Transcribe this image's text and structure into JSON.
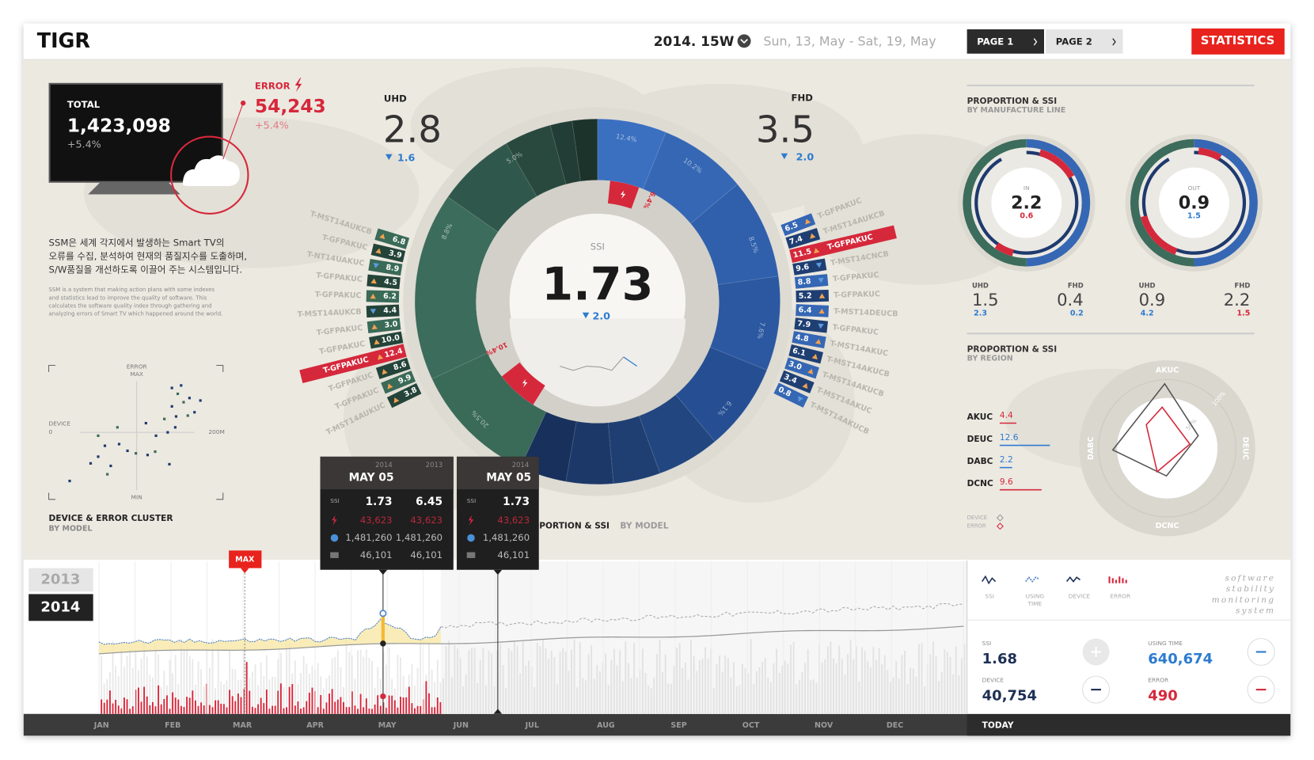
{
  "header": {
    "logo": "TIGR",
    "week": "2014. 15W",
    "range": "Sun, 13, May - Sat, 19, May",
    "pages": [
      "PAGE 1",
      "PAGE 2"
    ],
    "button": "STATISTICS"
  },
  "summary": {
    "total_label": "TOTAL",
    "total": "1,423,098",
    "total_change": "+5.4%",
    "error_label": "ERROR",
    "error": "54,243",
    "error_change": "+5.4%"
  },
  "description": {
    "korean": [
      "SSM은 세계 각지에서 발생하는 Smart TV의",
      "오류를 수집, 분석하여 현재의 품질지수를 도출하며,",
      "S/W품질을 개선하도록 이끌어 주는 시스템입니다."
    ],
    "english": [
      "SSM is a system that making action plans with some indexes",
      "and statistics lead to improve the quality of software. This",
      "calculates the software quality index through gathering and",
      "analyzing errors of Smart TV which happened around the world."
    ]
  },
  "cluster": {
    "title": "DEVICE & ERROR CLUSTER",
    "subtitle": "BY MODEL",
    "y_top": [
      "ERROR",
      "MAX"
    ],
    "y_bottom": "MIN",
    "x_start": [
      "DEVICE",
      "0"
    ],
    "x_end": "200M"
  },
  "model": {
    "title": "PROPORTION & SSI",
    "subtitle": "BY MODEL",
    "uhd": {
      "label": "UHD",
      "value": "2.8",
      "change": "1.6"
    },
    "fhd": {
      "label": "FHD",
      "value": "3.5",
      "change": "2.0"
    },
    "ssi": {
      "label": "SSI",
      "value": "1.73",
      "change": "2.0"
    },
    "segments": [
      "12.4%",
      "10.2%",
      "8.5%",
      "7.6%",
      "6.1%",
      "20.5%",
      "8.8%",
      "5.0%"
    ],
    "errors": [
      "6.4%",
      "10.4%"
    ],
    "left_models": [
      {
        "name": "T-MST14AUKCB",
        "value": "6.8",
        "trend": "up"
      },
      {
        "name": "T-GFPAKUC",
        "value": "3.9",
        "trend": "up"
      },
      {
        "name": "T-NT14UAKUC",
        "value": "8.9",
        "trend": "down"
      },
      {
        "name": "T-GFPAKUC",
        "value": "4.5",
        "trend": "up"
      },
      {
        "name": "T-GFPAKUC",
        "value": "6.2",
        "trend": "up"
      },
      {
        "name": "T-MST14AUKCB",
        "value": "4.4",
        "trend": "down"
      },
      {
        "name": "T-GFPAKUC",
        "value": "3.0",
        "trend": "up"
      },
      {
        "name": "T-GFPAKUC",
        "value": "10.0",
        "trend": "up"
      },
      {
        "name": "T-GFPAKUC",
        "value": "12.4",
        "trend": "up",
        "selected": true
      },
      {
        "name": "T-GFPAKUC",
        "value": "8.6",
        "trend": "up"
      },
      {
        "name": "T-GFPAKUC",
        "value": "9.9",
        "trend": "up"
      },
      {
        "name": "T-MST14AUKUC",
        "value": "3.8",
        "trend": "up"
      }
    ],
    "right_models": [
      {
        "name": "T-GFPAKUC",
        "value": "6.5",
        "trend": "up"
      },
      {
        "name": "T-MST14AUKCB",
        "value": "7.4",
        "trend": "up"
      },
      {
        "name": "T-GFPAKUC",
        "value": "11.5",
        "trend": "up",
        "selected": true
      },
      {
        "name": "T-MST14CNCB",
        "value": "9.6",
        "trend": "down"
      },
      {
        "name": "T-GFPAKUC",
        "value": "8.8",
        "trend": "down"
      },
      {
        "name": "T-GFPAKUC",
        "value": "5.2",
        "trend": "up"
      },
      {
        "name": "T-MST14DEUCB",
        "value": "6.4",
        "trend": "up"
      },
      {
        "name": "T-GFPAKUC",
        "value": "7.9",
        "trend": "down"
      },
      {
        "name": "T-MST14AKUC",
        "value": "4.8",
        "trend": "up"
      },
      {
        "name": "T-MST14AKUCB",
        "value": "6.1",
        "trend": "up"
      },
      {
        "name": "T-MST14AKUCB",
        "value": "3.0",
        "trend": "up"
      },
      {
        "name": "T-MST14AKUC",
        "value": "3.4",
        "trend": "up"
      },
      {
        "name": "T-MST14AKUCB",
        "value": "0.8",
        "trend": "down"
      }
    ]
  },
  "manufacture": {
    "title": "PROPORTION & SSI",
    "subtitle": "BY MANUFACTURE LINE",
    "gauges": [
      {
        "label": "IN",
        "value": "2.2",
        "sub": "0.6",
        "sub_color": "#d6283b",
        "lines": [
          {
            "label": "UHD",
            "value": "1.5",
            "sub": "2.3",
            "color": "#2d7bd0"
          },
          {
            "label": "FHD",
            "value": "0.4",
            "sub": "0.2",
            "color": "#2d7bd0"
          }
        ]
      },
      {
        "label": "OUT",
        "value": "0.9",
        "sub": "1.5",
        "sub_color": "#2d7bd0",
        "lines": [
          {
            "label": "UHD",
            "value": "0.9",
            "sub": "4.2",
            "color": "#2d7bd0"
          },
          {
            "label": "FHD",
            "value": "2.2",
            "sub": "1.5",
            "color": "#d6283b"
          }
        ]
      }
    ]
  },
  "region": {
    "title": "PROPORTION & SSI",
    "subtitle": "BY REGION",
    "rows": [
      {
        "name": "AKUC",
        "value": "4.4",
        "color": "#d6283b"
      },
      {
        "name": "DEUC",
        "value": "12.6",
        "color": "#2d7bd0"
      },
      {
        "name": "DABC",
        "value": "2.2",
        "color": "#2d7bd0"
      },
      {
        "name": "DCNC",
        "value": "9.6",
        "color": "#d6283b"
      }
    ],
    "legend": [
      "DEVICE",
      "ERROR"
    ],
    "axes": [
      "AKUC",
      "DEUC",
      "DCNC",
      "DABC"
    ],
    "rings": [
      "100%",
      "50%"
    ]
  },
  "tooltips": [
    {
      "years": [
        "2014",
        "2013"
      ],
      "date": "MAY 05",
      "ssi_label": "SSI",
      "rows": [
        [
          "1.73",
          "6.45"
        ],
        [
          "43,623",
          "43,623"
        ],
        [
          "1,481,260",
          "1,481,260"
        ],
        [
          "46,101",
          "46,101"
        ]
      ]
    },
    {
      "years": [
        "2014"
      ],
      "date": "MAY 05",
      "ssi_label": "SSI",
      "rows": [
        [
          "1.73"
        ],
        [
          "43,623"
        ],
        [
          "1,481,260"
        ],
        [
          "46,101"
        ]
      ]
    }
  ],
  "timeline": {
    "years": [
      "2013",
      "2014"
    ],
    "marker": "MAX",
    "months": [
      "JAN",
      "FEB",
      "MAR",
      "APR",
      "MAY",
      "JUN",
      "JUL",
      "AUG",
      "SEP",
      "OCT",
      "NOV",
      "DEC"
    ],
    "today": "TODAY"
  },
  "legend": {
    "items": [
      [
        "SSI"
      ],
      [
        "USING",
        "TIME"
      ],
      [
        "DEVICE"
      ],
      [
        "ERROR"
      ]
    ],
    "tagline": [
      "software",
      "stability",
      "monitoring",
      "system"
    ]
  },
  "stats": [
    {
      "label": "SSI",
      "value": "1.68"
    },
    {
      "label": "USING TIME",
      "value": "640,674"
    },
    {
      "label": "DEVICE",
      "value": "40,754"
    },
    {
      "label": "ERROR",
      "value": "490"
    }
  ]
}
